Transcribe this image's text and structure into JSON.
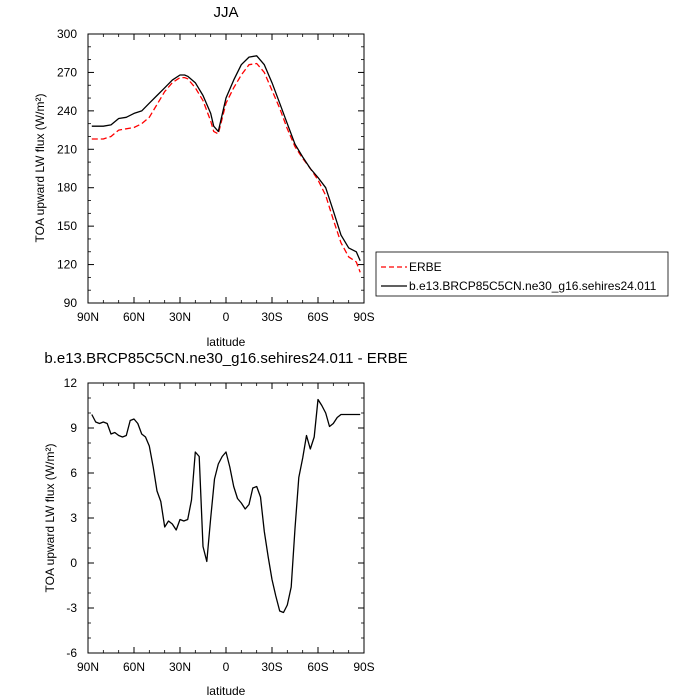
{
  "chart_data": [
    {
      "type": "line",
      "title": "JJA",
      "ylabel": "TOA upward LW flux (W/m²)",
      "xlabel": "latitude",
      "xlim": [
        90,
        -90
      ],
      "ylim": [
        90,
        300
      ],
      "xticks": [
        90,
        60,
        30,
        0,
        -30,
        -60,
        -90
      ],
      "xticklabels": [
        "90N",
        "60N",
        "30N",
        "0",
        "30S",
        "60S",
        "90S"
      ],
      "yticks": [
        90,
        120,
        150,
        180,
        210,
        240,
        270,
        300
      ],
      "yticklabels": [
        "90",
        "120",
        "150",
        "180",
        "210",
        "240",
        "270",
        "300"
      ],
      "legend_position": "right",
      "series": [
        {
          "name": "ERBE",
          "color": "#ff0000",
          "dash": "dashed",
          "x": [
            87.5,
            80,
            75,
            70,
            65,
            60,
            55,
            50,
            45,
            40,
            35,
            30,
            27,
            25,
            20,
            15,
            10,
            8,
            5,
            0,
            -5,
            -10,
            -15,
            -20,
            -25,
            -30,
            -35,
            -40,
            -45,
            -50,
            -55,
            -60,
            -65,
            -70,
            -75,
            -80,
            -85,
            -87.5
          ],
          "y": [
            218,
            218,
            220,
            225,
            226,
            227,
            230,
            235,
            245,
            255,
            262,
            266,
            266,
            265,
            258,
            248,
            232,
            224,
            222,
            246,
            258,
            268,
            276,
            277,
            270,
            256,
            242,
            226,
            212,
            203,
            195,
            186,
            174,
            155,
            137,
            126,
            122,
            114
          ]
        },
        {
          "name": "b.e13.BRCP85C5CN.ne30_g16.sehires24.011",
          "color": "#000000",
          "dash": "solid",
          "x": [
            87.5,
            80,
            75,
            70,
            65,
            60,
            55,
            50,
            45,
            40,
            35,
            30,
            27,
            25,
            20,
            15,
            10,
            8,
            5,
            0,
            -5,
            -10,
            -15,
            -20,
            -25,
            -30,
            -35,
            -40,
            -45,
            -50,
            -55,
            -60,
            -65,
            -70,
            -75,
            -80,
            -85,
            -87.5
          ],
          "y": [
            228,
            228,
            229,
            234,
            235,
            238,
            240,
            246,
            252,
            258,
            264,
            268,
            268,
            267,
            262,
            252,
            238,
            228,
            224,
            250,
            264,
            276,
            282,
            283,
            276,
            262,
            246,
            230,
            214,
            204,
            195,
            188,
            180,
            162,
            143,
            133,
            130,
            123
          ]
        }
      ]
    },
    {
      "type": "line",
      "title": "b.e13.BRCP85C5CN.ne30_g16.sehires24.011 - ERBE",
      "ylabel": "TOA upward LW flux (W/m²)",
      "xlabel": "latitude",
      "xlim": [
        90,
        -90
      ],
      "ylim": [
        -6,
        12
      ],
      "xticks": [
        90,
        60,
        30,
        0,
        -30,
        -60,
        -90
      ],
      "xticklabels": [
        "90N",
        "60N",
        "30N",
        "0",
        "30S",
        "60S",
        "90S"
      ],
      "yticks": [
        -6,
        -3,
        0,
        3,
        6,
        9,
        12
      ],
      "yticklabels": [
        "-6",
        "-3",
        "0",
        "3",
        "6",
        "9",
        "12"
      ],
      "series": [
        {
          "color": "#000000",
          "dash": "solid",
          "x": [
            87.5,
            85,
            82.5,
            80,
            77.5,
            75,
            72.5,
            70,
            67.5,
            65,
            62.5,
            60,
            57.5,
            55,
            52.5,
            50,
            47.5,
            45,
            42.5,
            40,
            37.5,
            35,
            32.5,
            30,
            27.5,
            25,
            22.5,
            20,
            17.5,
            15,
            12.5,
            10,
            7.5,
            5,
            2.5,
            0,
            -2.5,
            -5,
            -7.5,
            -10,
            -12.5,
            -15,
            -17.5,
            -20,
            -22.5,
            -25,
            -27.5,
            -30,
            -32.5,
            -35,
            -37.5,
            -40,
            -42.5,
            -45,
            -47.5,
            -50,
            -52.5,
            -55,
            -57.5,
            -60,
            -62.5,
            -65,
            -67.5,
            -70,
            -72.5,
            -75,
            -77.5,
            -80,
            -82.5,
            -85,
            -87.5
          ],
          "y": [
            9.9,
            9.4,
            9.3,
            9.4,
            9.3,
            8.6,
            8.7,
            8.5,
            8.4,
            8.5,
            9.5,
            9.6,
            9.3,
            8.6,
            8.4,
            7.8,
            6.4,
            4.8,
            4.1,
            2.4,
            2.8,
            2.6,
            2.2,
            2.9,
            2.8,
            2.9,
            4.2,
            7.4,
            7.1,
            1.1,
            0.1,
            3.0,
            5.6,
            6.6,
            7.1,
            7.4,
            6.4,
            5.1,
            4.3,
            4.0,
            3.6,
            3.9,
            5.0,
            5.1,
            4.4,
            2.1,
            0.4,
            -1.1,
            -2.2,
            -3.2,
            -3.3,
            -2.8,
            -1.6,
            2.3,
            5.7,
            7.0,
            8.5,
            7.6,
            8.4,
            10.9,
            10.5,
            10.0,
            9.1,
            9.3,
            9.7,
            9.9,
            9.9,
            9.9,
            9.9,
            9.9,
            9.9
          ]
        }
      ]
    }
  ]
}
